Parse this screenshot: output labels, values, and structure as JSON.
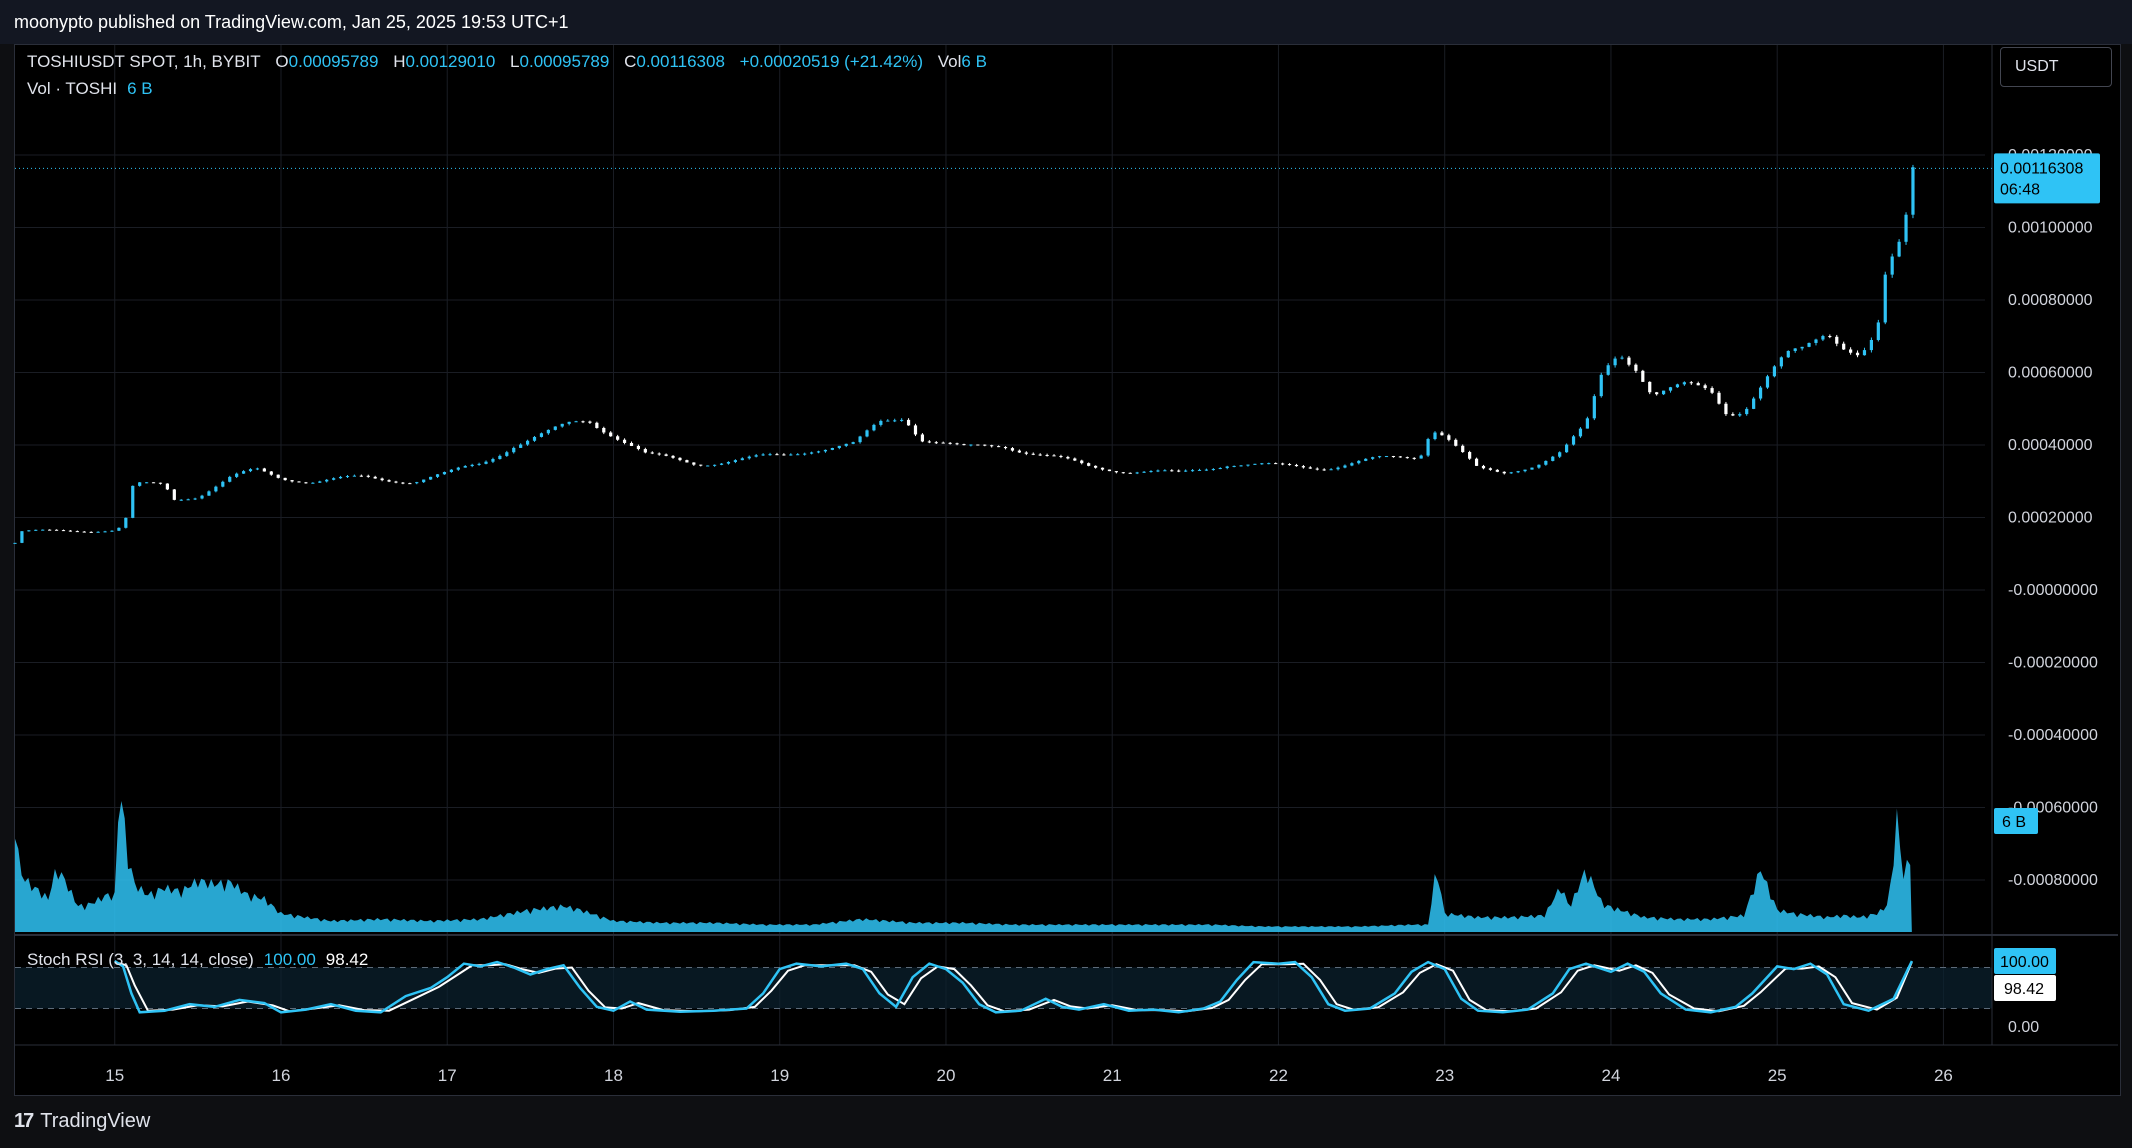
{
  "header": {
    "publish_line": "moonypto published on TradingView.com, Jan 25, 2025 19:53 UTC+1"
  },
  "legend": {
    "symbol": "TOSHIUSDT SPOT, 1h, BYBIT",
    "open_label": "O",
    "open": "0.00095789",
    "high_label": "H",
    "high": "0.00129010",
    "low_label": "L",
    "low": "0.00095789",
    "close_label": "C",
    "close": "0.00116308",
    "change": "+0.00020519 (+21.42%)",
    "vol_label": "Vol",
    "vol": "6 B",
    "volume_line_label": "Vol · TOSHI",
    "volume_line_value": "6 B"
  },
  "currency_button": "USDT",
  "stoch": {
    "label": "Stoch RSI (3, 3, 14, 14, close)",
    "k": "100.00",
    "d": "98.42"
  },
  "footer": {
    "brand": "TradingView",
    "logo_glyph": "17"
  },
  "colors": {
    "bull": "#2fc3f5",
    "bear": "#ffffff",
    "volume": "#2fc3f5",
    "stoch_k": "#2fc3f5",
    "stoch_d": "#ffffff"
  },
  "chart_data": {
    "type": "candlestick",
    "price_axis": {
      "tick_labels": [
        "0.00120000",
        "0.00100000",
        "0.00080000",
        "0.00060000",
        "0.00040000",
        "0.00020000",
        "-0.00000000",
        "-0.00020000",
        "-0.00040000",
        "-0.00060000",
        "-0.00080000"
      ],
      "ticks": [
        0.0012,
        0.001,
        0.0008,
        0.0006,
        0.0004,
        0.0002,
        0,
        -0.0002,
        -0.0004,
        -0.0006,
        -0.0008
      ],
      "last_price_label": "0.00116308",
      "countdown": "06:48",
      "last_price": 0.00116308,
      "volume_label": "6 B"
    },
    "x_axis": {
      "tick_labels": [
        "15",
        "16",
        "17",
        "18",
        "19",
        "20",
        "21",
        "22",
        "23",
        "24",
        "25",
        "26"
      ],
      "range_days": [
        14.4,
        26.25
      ],
      "last_day": 25.81
    },
    "price_path": [
      [
        14.4,
        0.00013
      ],
      [
        14.42,
        0.00016
      ],
      [
        14.5,
        0.000162
      ],
      [
        15.0,
        0.000165
      ],
      [
        15.06,
        0.00018
      ],
      [
        15.1,
        0.00028
      ],
      [
        15.15,
        0.00029
      ],
      [
        15.3,
        0.00029
      ],
      [
        15.35,
        0.00025
      ],
      [
        15.5,
        0.00026
      ],
      [
        15.7,
        0.00031
      ],
      [
        15.85,
        0.00033
      ],
      [
        16.0,
        0.00031
      ],
      [
        16.2,
        0.0003
      ],
      [
        16.5,
        0.00031
      ],
      [
        16.8,
        0.0003
      ],
      [
        17.0,
        0.00032
      ],
      [
        17.2,
        0.00035
      ],
      [
        17.4,
        0.0004
      ],
      [
        17.6,
        0.00043
      ],
      [
        17.75,
        0.00046
      ],
      [
        17.85,
        0.00047
      ],
      [
        18.0,
        0.00043
      ],
      [
        18.2,
        0.00037
      ],
      [
        18.5,
        0.00035
      ],
      [
        18.8,
        0.00036
      ],
      [
        19.0,
        0.00037
      ],
      [
        19.2,
        0.00039
      ],
      [
        19.45,
        0.0004
      ],
      [
        19.6,
        0.00046
      ],
      [
        19.75,
        0.00048
      ],
      [
        19.85,
        0.00042
      ],
      [
        20.1,
        0.00039
      ],
      [
        20.35,
        0.0004
      ],
      [
        20.6,
        0.00037
      ],
      [
        20.85,
        0.00034
      ],
      [
        21.1,
        0.00033
      ],
      [
        21.4,
        0.00032
      ],
      [
        21.7,
        0.00035
      ],
      [
        22.0,
        0.00034
      ],
      [
        22.3,
        0.00034
      ],
      [
        22.6,
        0.00036
      ],
      [
        22.85,
        0.00037
      ],
      [
        22.92,
        0.00045
      ],
      [
        23.0,
        0.00043
      ],
      [
        23.1,
        0.00038
      ],
      [
        23.2,
        0.00033
      ],
      [
        23.35,
        0.00032
      ],
      [
        23.55,
        0.00035
      ],
      [
        23.7,
        0.00038
      ],
      [
        23.85,
        0.00045
      ],
      [
        23.95,
        0.0006
      ],
      [
        24.05,
        0.00066
      ],
      [
        24.15,
        0.00062
      ],
      [
        24.25,
        0.00054
      ],
      [
        24.45,
        0.00056
      ],
      [
        24.6,
        0.00055
      ],
      [
        24.7,
        0.00049
      ],
      [
        24.8,
        0.0005
      ],
      [
        24.95,
        0.00059
      ],
      [
        25.05,
        0.00064
      ],
      [
        25.15,
        0.00066
      ],
      [
        25.3,
        0.00072
      ],
      [
        25.4,
        0.00068
      ],
      [
        25.5,
        0.00065
      ],
      [
        25.6,
        0.0007
      ],
      [
        25.65,
        0.00085
      ],
      [
        25.72,
        0.00093
      ],
      [
        25.76,
        0.00096
      ],
      [
        25.81,
        0.00116
      ]
    ],
    "volume_path": [
      [
        14.4,
        0.62
      ],
      [
        14.43,
        0.32
      ],
      [
        14.5,
        0.25
      ],
      [
        14.55,
        0.22
      ],
      [
        14.6,
        0.18
      ],
      [
        14.65,
        0.35
      ],
      [
        14.7,
        0.28
      ],
      [
        14.78,
        0.14
      ],
      [
        14.85,
        0.15
      ],
      [
        14.95,
        0.2
      ],
      [
        15.0,
        0.2
      ],
      [
        15.03,
        0.82
      ],
      [
        15.08,
        0.4
      ],
      [
        15.12,
        0.26
      ],
      [
        15.2,
        0.2
      ],
      [
        15.3,
        0.24
      ],
      [
        15.4,
        0.22
      ],
      [
        15.5,
        0.28
      ],
      [
        15.6,
        0.26
      ],
      [
        15.7,
        0.27
      ],
      [
        15.8,
        0.2
      ],
      [
        15.9,
        0.18
      ],
      [
        16.0,
        0.1
      ],
      [
        16.3,
        0.06
      ],
      [
        16.6,
        0.07
      ],
      [
        16.9,
        0.06
      ],
      [
        17.2,
        0.07
      ],
      [
        17.5,
        0.12
      ],
      [
        17.7,
        0.14
      ],
      [
        17.8,
        0.12
      ],
      [
        18.0,
        0.06
      ],
      [
        18.3,
        0.05
      ],
      [
        18.6,
        0.05
      ],
      [
        18.9,
        0.04
      ],
      [
        19.2,
        0.04
      ],
      [
        19.5,
        0.07
      ],
      [
        19.8,
        0.05
      ],
      [
        20.1,
        0.05
      ],
      [
        20.4,
        0.04
      ],
      [
        20.7,
        0.04
      ],
      [
        21.0,
        0.04
      ],
      [
        21.3,
        0.04
      ],
      [
        21.6,
        0.04
      ],
      [
        21.9,
        0.03
      ],
      [
        22.2,
        0.03
      ],
      [
        22.5,
        0.03
      ],
      [
        22.8,
        0.04
      ],
      [
        22.9,
        0.04
      ],
      [
        22.95,
        0.35
      ],
      [
        23.0,
        0.1
      ],
      [
        23.2,
        0.08
      ],
      [
        23.4,
        0.08
      ],
      [
        23.6,
        0.09
      ],
      [
        23.7,
        0.25
      ],
      [
        23.75,
        0.13
      ],
      [
        23.85,
        0.34
      ],
      [
        23.95,
        0.15
      ],
      [
        24.05,
        0.12
      ],
      [
        24.2,
        0.08
      ],
      [
        24.4,
        0.07
      ],
      [
        24.6,
        0.07
      ],
      [
        24.8,
        0.09
      ],
      [
        24.9,
        0.34
      ],
      [
        25.0,
        0.12
      ],
      [
        25.1,
        0.1
      ],
      [
        25.2,
        0.09
      ],
      [
        25.3,
        0.08
      ],
      [
        25.4,
        0.09
      ],
      [
        25.5,
        0.08
      ],
      [
        25.6,
        0.1
      ],
      [
        25.67,
        0.15
      ],
      [
        25.72,
        0.62
      ],
      [
        25.76,
        0.3
      ],
      [
        25.81,
        0.45
      ]
    ],
    "volume_max_label": "6 B",
    "stoch_axis": {
      "tick_labels": [
        "100.00",
        "0.00"
      ],
      "upper_band": 80,
      "lower_band": 20
    },
    "stoch_k_path": [
      [
        15.0,
        100
      ],
      [
        15.05,
        90
      ],
      [
        15.1,
        40
      ],
      [
        15.15,
        5
      ],
      [
        15.3,
        8
      ],
      [
        15.45,
        20
      ],
      [
        15.6,
        15
      ],
      [
        15.75,
        28
      ],
      [
        15.9,
        22
      ],
      [
        16.0,
        5
      ],
      [
        16.15,
        10
      ],
      [
        16.3,
        20
      ],
      [
        16.45,
        8
      ],
      [
        16.6,
        5
      ],
      [
        16.75,
        35
      ],
      [
        16.9,
        50
      ],
      [
        17.0,
        70
      ],
      [
        17.1,
        95
      ],
      [
        17.2,
        90
      ],
      [
        17.3,
        98
      ],
      [
        17.4,
        88
      ],
      [
        17.5,
        75
      ],
      [
        17.6,
        85
      ],
      [
        17.7,
        92
      ],
      [
        17.8,
        50
      ],
      [
        17.9,
        15
      ],
      [
        18.0,
        8
      ],
      [
        18.1,
        25
      ],
      [
        18.2,
        10
      ],
      [
        18.4,
        6
      ],
      [
        18.6,
        8
      ],
      [
        18.8,
        12
      ],
      [
        18.9,
        40
      ],
      [
        19.0,
        85
      ],
      [
        19.1,
        95
      ],
      [
        19.25,
        90
      ],
      [
        19.4,
        95
      ],
      [
        19.5,
        85
      ],
      [
        19.6,
        40
      ],
      [
        19.7,
        15
      ],
      [
        19.8,
        70
      ],
      [
        19.9,
        95
      ],
      [
        20.0,
        85
      ],
      [
        20.1,
        60
      ],
      [
        20.2,
        20
      ],
      [
        20.3,
        5
      ],
      [
        20.45,
        8
      ],
      [
        20.6,
        30
      ],
      [
        20.7,
        15
      ],
      [
        20.8,
        10
      ],
      [
        20.95,
        20
      ],
      [
        21.1,
        8
      ],
      [
        21.25,
        10
      ],
      [
        21.4,
        5
      ],
      [
        21.55,
        12
      ],
      [
        21.65,
        25
      ],
      [
        21.75,
        65
      ],
      [
        21.85,
        98
      ],
      [
        22.0,
        95
      ],
      [
        22.1,
        98
      ],
      [
        22.2,
        70
      ],
      [
        22.3,
        20
      ],
      [
        22.4,
        8
      ],
      [
        22.55,
        12
      ],
      [
        22.7,
        40
      ],
      [
        22.8,
        80
      ],
      [
        22.9,
        98
      ],
      [
        23.0,
        85
      ],
      [
        23.1,
        30
      ],
      [
        23.2,
        8
      ],
      [
        23.35,
        5
      ],
      [
        23.5,
        10
      ],
      [
        23.65,
        40
      ],
      [
        23.75,
        85
      ],
      [
        23.85,
        95
      ],
      [
        24.0,
        80
      ],
      [
        24.1,
        95
      ],
      [
        24.2,
        80
      ],
      [
        24.3,
        40
      ],
      [
        24.45,
        10
      ],
      [
        24.6,
        5
      ],
      [
        24.75,
        15
      ],
      [
        24.85,
        40
      ],
      [
        25.0,
        90
      ],
      [
        25.1,
        85
      ],
      [
        25.2,
        95
      ],
      [
        25.3,
        75
      ],
      [
        25.4,
        20
      ],
      [
        25.55,
        8
      ],
      [
        25.7,
        30
      ],
      [
        25.81,
        100
      ]
    ],
    "stoch_d_path": [
      [
        15.0,
        98
      ],
      [
        15.07,
        92
      ],
      [
        15.12,
        55
      ],
      [
        15.2,
        8
      ],
      [
        15.35,
        10
      ],
      [
        15.5,
        18
      ],
      [
        15.65,
        16
      ],
      [
        15.8,
        25
      ],
      [
        15.95,
        18
      ],
      [
        16.05,
        7
      ],
      [
        16.2,
        12
      ],
      [
        16.35,
        18
      ],
      [
        16.5,
        9
      ],
      [
        16.65,
        8
      ],
      [
        16.8,
        30
      ],
      [
        16.95,
        52
      ],
      [
        17.05,
        72
      ],
      [
        17.15,
        92
      ],
      [
        17.25,
        92
      ],
      [
        17.35,
        94
      ],
      [
        17.45,
        85
      ],
      [
        17.55,
        78
      ],
      [
        17.65,
        86
      ],
      [
        17.75,
        88
      ],
      [
        17.85,
        45
      ],
      [
        17.95,
        14
      ],
      [
        18.05,
        12
      ],
      [
        18.15,
        22
      ],
      [
        18.3,
        9
      ],
      [
        18.5,
        7
      ],
      [
        18.7,
        9
      ],
      [
        18.85,
        15
      ],
      [
        18.95,
        45
      ],
      [
        19.05,
        82
      ],
      [
        19.15,
        92
      ],
      [
        19.3,
        92
      ],
      [
        19.45,
        92
      ],
      [
        19.55,
        80
      ],
      [
        19.65,
        38
      ],
      [
        19.75,
        20
      ],
      [
        19.85,
        68
      ],
      [
        19.95,
        90
      ],
      [
        20.05,
        85
      ],
      [
        20.15,
        55
      ],
      [
        20.25,
        18
      ],
      [
        20.35,
        7
      ],
      [
        20.5,
        10
      ],
      [
        20.65,
        28
      ],
      [
        20.75,
        16
      ],
      [
        20.85,
        12
      ],
      [
        21.0,
        18
      ],
      [
        21.15,
        9
      ],
      [
        21.3,
        9
      ],
      [
        21.45,
        7
      ],
      [
        21.6,
        13
      ],
      [
        21.7,
        28
      ],
      [
        21.8,
        65
      ],
      [
        21.9,
        94
      ],
      [
        22.05,
        94
      ],
      [
        22.15,
        95
      ],
      [
        22.25,
        65
      ],
      [
        22.35,
        20
      ],
      [
        22.45,
        10
      ],
      [
        22.6,
        14
      ],
      [
        22.75,
        42
      ],
      [
        22.85,
        78
      ],
      [
        22.95,
        94
      ],
      [
        23.05,
        82
      ],
      [
        23.15,
        28
      ],
      [
        23.25,
        9
      ],
      [
        23.4,
        7
      ],
      [
        23.55,
        12
      ],
      [
        23.7,
        42
      ],
      [
        23.8,
        82
      ],
      [
        23.9,
        92
      ],
      [
        24.05,
        82
      ],
      [
        24.15,
        92
      ],
      [
        24.25,
        78
      ],
      [
        24.35,
        38
      ],
      [
        24.5,
        12
      ],
      [
        24.65,
        7
      ],
      [
        24.8,
        17
      ],
      [
        24.9,
        42
      ],
      [
        25.05,
        86
      ],
      [
        25.15,
        86
      ],
      [
        25.25,
        90
      ],
      [
        25.35,
        70
      ],
      [
        25.45,
        22
      ],
      [
        25.6,
        10
      ],
      [
        25.72,
        32
      ],
      [
        25.81,
        98.42
      ]
    ]
  }
}
